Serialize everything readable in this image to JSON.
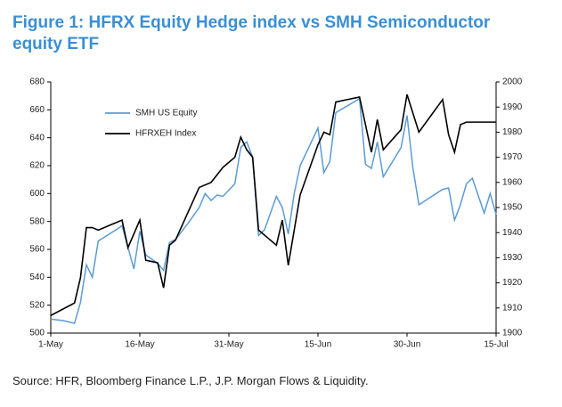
{
  "chart_data": {
    "type": "line",
    "title": "Figure 1: HFRX Equity Hedge index vs SMH Semiconductor equity ETF",
    "source": "Source: HFR, Bloomberg Finance L.P., J.P. Morgan Flows & Liquidity.",
    "xlim": [
      0,
      75
    ],
    "xticks": [
      {
        "value": 0,
        "label": "1-May"
      },
      {
        "value": 15,
        "label": "16-May"
      },
      {
        "value": 30,
        "label": "31-May"
      },
      {
        "value": 45,
        "label": "15-Jun"
      },
      {
        "value": 60,
        "label": "30-Jun"
      },
      {
        "value": 75,
        "label": "15-Jul"
      }
    ],
    "ylim": [
      500,
      680
    ],
    "yticks": [
      500,
      520,
      540,
      560,
      580,
      600,
      620,
      640,
      660,
      680
    ],
    "y2lim": [
      1900,
      2000
    ],
    "y2ticks": [
      1900,
      1910,
      1920,
      1930,
      1940,
      1950,
      1960,
      1970,
      1980,
      1990,
      2000
    ],
    "series": [
      {
        "name": "SMH US Equity",
        "color": "#5b9bd5",
        "x": [
          0,
          2,
          4,
          5,
          6,
          7,
          8,
          11,
          12,
          14,
          15,
          16,
          18,
          19,
          20,
          21,
          23,
          25,
          26,
          27,
          28,
          29,
          31,
          32,
          33,
          34,
          35,
          36,
          38,
          39,
          40,
          41,
          42,
          45,
          46,
          47,
          48,
          52,
          53,
          54,
          55,
          56,
          59,
          60,
          61,
          62,
          66,
          67,
          68,
          69,
          70,
          71,
          73,
          74,
          75
        ],
        "values": [
          510,
          509,
          507,
          522,
          549,
          540,
          566,
          574,
          577,
          546,
          573,
          556,
          550,
          545,
          565,
          567,
          578,
          590,
          600,
          595,
          599,
          598,
          607,
          633,
          637,
          626,
          570,
          574,
          598,
          590,
          571,
          600,
          620,
          647,
          615,
          623,
          658,
          668,
          621,
          618,
          637,
          612,
          633,
          656,
          618,
          592,
          603,
          604,
          581,
          592,
          607,
          611,
          586,
          600,
          585
        ]
      },
      {
        "name": "HFRXEH Index",
        "color": "#000000",
        "axis": "y2",
        "x": [
          0,
          4,
          5,
          6,
          7,
          8,
          10,
          12,
          13,
          15,
          16,
          18,
          19,
          20,
          21,
          25,
          27,
          29,
          31,
          32,
          33,
          34,
          35,
          38,
          39,
          40,
          42,
          45,
          46,
          47,
          48,
          52,
          54,
          55,
          56,
          59,
          60,
          62,
          66,
          67,
          68,
          69,
          70,
          75
        ],
        "values": [
          1907,
          1912,
          1922,
          1942,
          1942,
          1941,
          1943,
          1945,
          1934,
          1945,
          1929,
          1928,
          1918,
          1935,
          1937,
          1958,
          1960,
          1966,
          1970,
          1978,
          1973,
          1970,
          1941,
          1935,
          1945,
          1927,
          1955,
          1975,
          1980,
          1979,
          1992,
          1994,
          1972,
          1985,
          1973,
          1981,
          1995,
          1980,
          1993,
          1979,
          1972,
          1983,
          1984,
          1984
        ]
      }
    ]
  }
}
